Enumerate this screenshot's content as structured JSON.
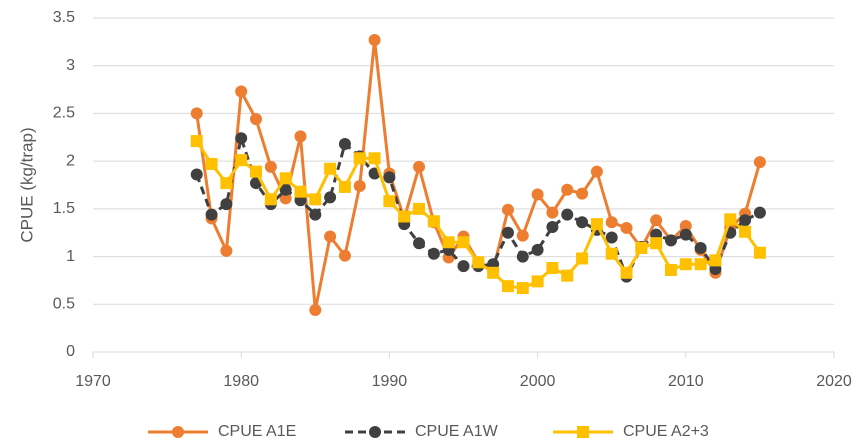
{
  "chart_data": {
    "type": "line",
    "y_label": "CPUE (kg/trap)",
    "x": [
      1977,
      1978,
      1979,
      1980,
      1981,
      1982,
      1983,
      1984,
      1985,
      1986,
      1987,
      1988,
      1989,
      1990,
      1991,
      1992,
      1993,
      1994,
      1995,
      1996,
      1997,
      1998,
      1999,
      2000,
      2001,
      2002,
      2003,
      2004,
      2005,
      2006,
      2007,
      2008,
      2009,
      2010,
      2011,
      2012,
      2013,
      2014,
      2015
    ],
    "series": [
      {
        "name": "CPUE A1E",
        "color": "#ed7d31",
        "marker": "circle",
        "dashed": false,
        "values": [
          2.5,
          1.4,
          1.06,
          2.73,
          2.44,
          1.94,
          1.61,
          2.26,
          0.44,
          1.21,
          1.01,
          1.74,
          3.27,
          1.87,
          1.4,
          1.94,
          1.36,
          0.99,
          1.21,
          0.94,
          0.86,
          1.49,
          1.22,
          1.65,
          1.46,
          1.7,
          1.66,
          1.89,
          1.36,
          1.3,
          1.09,
          1.38,
          1.17,
          1.32,
          1.07,
          0.83,
          1.3,
          1.45,
          1.99
        ]
      },
      {
        "name": "CPUE A1W",
        "color": "#404040",
        "marker": "circle",
        "dashed": true,
        "values": [
          1.86,
          1.44,
          1.55,
          2.24,
          1.77,
          1.55,
          1.7,
          1.59,
          1.44,
          1.62,
          2.18,
          2.05,
          1.87,
          1.83,
          1.34,
          1.14,
          1.03,
          1.07,
          0.9,
          0.9,
          0.92,
          1.25,
          1.0,
          1.07,
          1.31,
          1.44,
          1.36,
          1.28,
          1.2,
          0.79,
          1.1,
          1.23,
          1.17,
          1.23,
          1.09,
          0.87,
          1.25,
          1.38,
          1.46
        ]
      },
      {
        "name": "CPUE A2+3",
        "color": "#ffc000",
        "marker": "square",
        "dashed": false,
        "values": [
          2.21,
          1.97,
          1.77,
          2.01,
          1.89,
          1.6,
          1.82,
          1.68,
          1.6,
          1.92,
          1.73,
          2.03,
          2.03,
          1.58,
          1.42,
          1.5,
          1.37,
          1.15,
          1.15,
          0.94,
          0.83,
          0.69,
          0.67,
          0.74,
          0.88,
          0.8,
          0.98,
          1.34,
          1.03,
          0.83,
          1.09,
          1.14,
          0.86,
          0.92,
          0.92,
          0.96,
          1.39,
          1.26,
          1.04
        ]
      }
    ],
    "xlim": [
      1970,
      2020
    ],
    "xticks": [
      1970,
      1980,
      1990,
      2000,
      2010,
      2020
    ],
    "ylim": [
      0,
      3.5
    ],
    "yticks": [
      0,
      0.5,
      1,
      1.5,
      2,
      2.5,
      3,
      3.5
    ],
    "grid": true,
    "legend": "bottom"
  }
}
